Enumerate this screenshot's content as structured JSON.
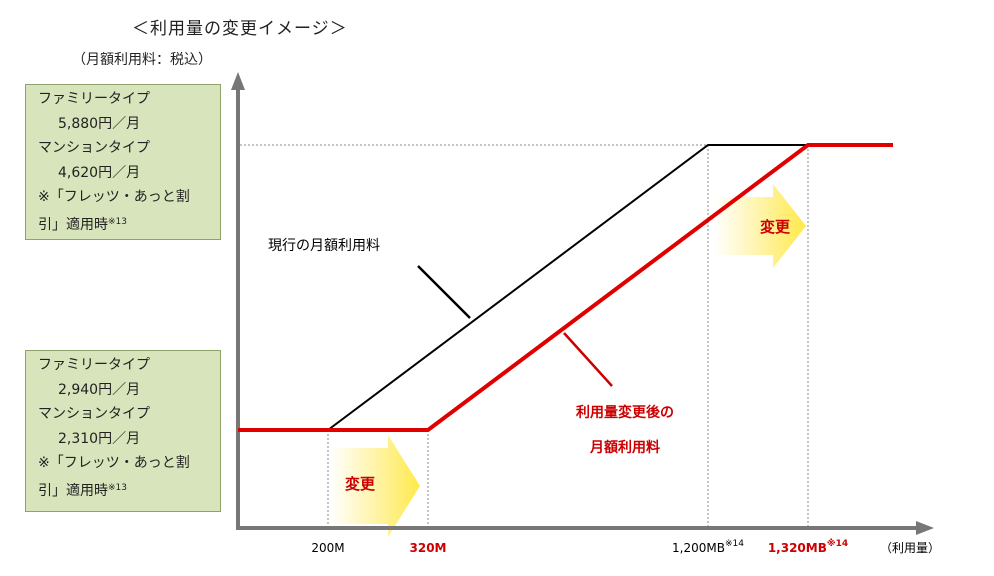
{
  "title": "＜利用量の変更イメージ＞",
  "y_unit": "（月額利用料：税込）",
  "high_box": {
    "line1": "ファミリータイプ",
    "line2": "5,880円／月",
    "line3": "マンションタイプ",
    "line4": "4,620円／月",
    "line5": "※「フレッツ・あっと割",
    "line6": "引」適用時",
    "note": "※13"
  },
  "low_box": {
    "line1": "ファミリータイプ",
    "line2": "2,940円／月",
    "line3": "マンションタイプ",
    "line4": "2,310円／月",
    "line5": "※「フレッツ・あっと割",
    "line6": "引」適用時",
    "note": "※13"
  },
  "labels": {
    "current": "現行の月額利用料",
    "new_line1": "利用量変更後の",
    "new_line2": "月額利用料",
    "change": "変更",
    "x_axis": "（利用量）"
  },
  "chart_data": {
    "type": "line",
    "x_ticks": [
      {
        "label": "200M",
        "value": 200,
        "highlight": false,
        "note": ""
      },
      {
        "label": "320M",
        "value": 320,
        "highlight": true,
        "note": ""
      },
      {
        "label": "1,200MB",
        "value": 1200,
        "highlight": false,
        "note": "※14"
      },
      {
        "label": "1,320MB",
        "value": 1320,
        "highlight": true,
        "note": "※14"
      }
    ],
    "series": [
      {
        "name": "現行の月額利用料",
        "color": "#000000",
        "points": [
          [
            200,
            2940
          ],
          [
            1200,
            5880
          ],
          [
            1320,
            5880
          ]
        ]
      },
      {
        "name": "利用量変更後の月額利用料",
        "color": "#e00000",
        "points": [
          [
            0,
            2940
          ],
          [
            320,
            2940
          ],
          [
            1320,
            5880
          ],
          [
            1440,
            5880
          ]
        ]
      }
    ],
    "xlim": [
      0,
      1440
    ],
    "ylim": [
      2310,
      5880
    ],
    "grid": false
  }
}
